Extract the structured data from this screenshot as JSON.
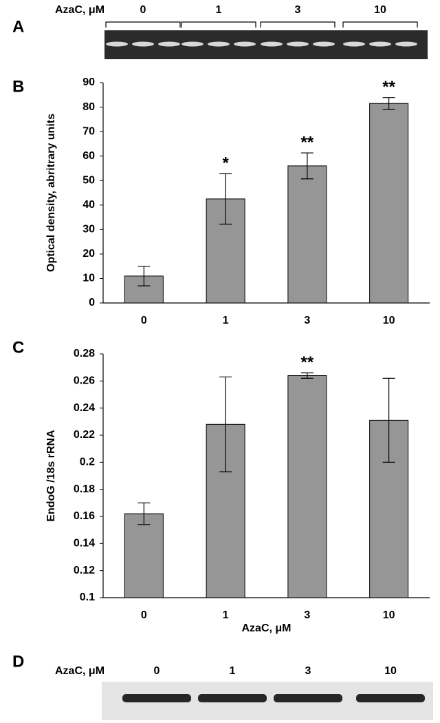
{
  "panel_labels": [
    "A",
    "B",
    "C",
    "D"
  ],
  "gel_a": {
    "label": "AzaC, μM",
    "lanes": [
      "0",
      "1",
      "3",
      "10"
    ]
  },
  "gel_d": {
    "label": "AzaC, μM",
    "lanes": [
      "0",
      "1",
      "3",
      "10"
    ]
  },
  "chart_data": [
    {
      "type": "bar",
      "categories": [
        "0",
        "1",
        "3",
        "10"
      ],
      "values": [
        11,
        42.5,
        56,
        81.5
      ],
      "errors": [
        4,
        10.3,
        5.3,
        2.4
      ],
      "annotations": [
        null,
        "*",
        "**",
        "**"
      ],
      "ylabel": "Optical density, abritrary units",
      "ylim": [
        0,
        90
      ],
      "yticks": [
        0,
        10,
        20,
        30,
        40,
        50,
        60,
        70,
        80,
        90
      ],
      "color": "#969696",
      "grid": false
    },
    {
      "type": "bar",
      "categories": [
        "0",
        "1",
        "3",
        "10"
      ],
      "values": [
        0.162,
        0.228,
        0.264,
        0.231
      ],
      "errors": [
        0.008,
        0.035,
        0.002,
        0.031
      ],
      "annotations": [
        null,
        null,
        "**",
        null
      ],
      "ylabel": "EndoG /18s rRNA",
      "xlabel": "AzaC, μM",
      "ylim": [
        0.1,
        0.28
      ],
      "yticks": [
        0.1,
        0.12,
        0.14,
        0.16,
        0.18,
        0.2,
        0.22,
        0.24,
        0.26,
        0.28
      ],
      "color": "#969696",
      "grid": false
    }
  ]
}
